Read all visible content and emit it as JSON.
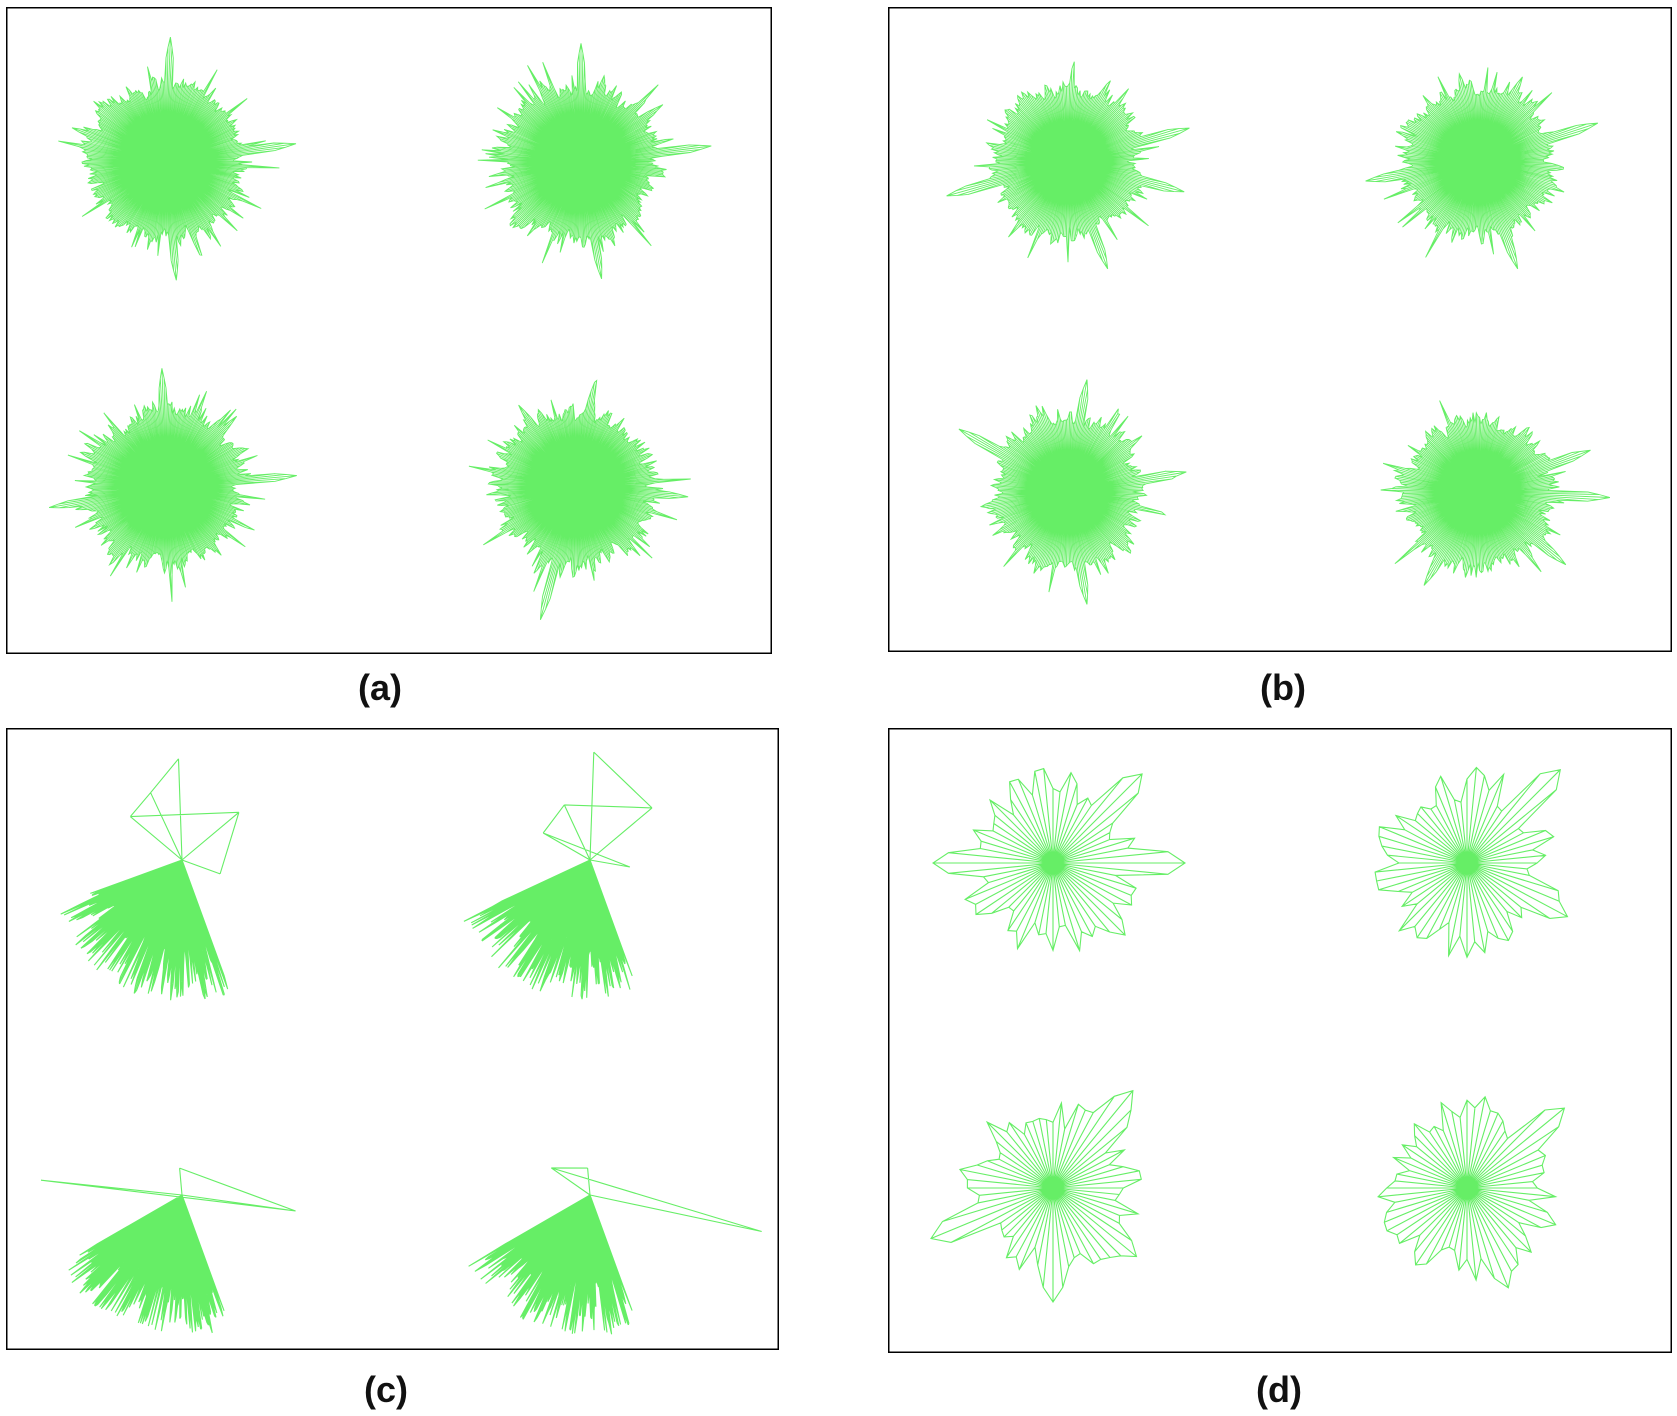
{
  "figure": {
    "line_color": "#66ee66",
    "frame_color": "#000000",
    "panels": [
      {
        "id": "a",
        "caption": "(a)",
        "glyphs": [
          {
            "spokes": 360,
            "style": "dense",
            "seed": 11,
            "spikes": [
              {
                "angle": 88,
                "len": 1.0
              },
              {
                "angle": 8,
                "len": 1.05
              },
              {
                "angle": 275,
                "len": 0.95
              },
              {
                "angle": 160,
                "len": 0.8
              }
            ]
          },
          {
            "spokes": 360,
            "style": "dense",
            "seed": 23,
            "spikes": [
              {
                "angle": 90,
                "len": 0.95
              },
              {
                "angle": 7,
                "len": 1.05
              },
              {
                "angle": 280,
                "len": 0.95
              },
              {
                "angle": 35,
                "len": 0.8
              }
            ]
          },
          {
            "spokes": 360,
            "style": "dense",
            "seed": 37,
            "spikes": [
              {
                "angle": 92,
                "len": 0.95
              },
              {
                "angle": 5,
                "len": 1.05
              },
              {
                "angle": 190,
                "len": 0.95
              },
              {
                "angle": 45,
                "len": 0.8
              }
            ]
          },
          {
            "spokes": 360,
            "style": "dense",
            "seed": 41,
            "spikes": [
              {
                "angle": 255,
                "len": 1.1
              },
              {
                "angle": 355,
                "len": 0.9
              },
              {
                "angle": 80,
                "len": 0.85
              },
              {
                "angle": 125,
                "len": 0.8
              }
            ]
          }
        ]
      },
      {
        "id": "b",
        "caption": "(b)",
        "glyphs": [
          {
            "spokes": 300,
            "style": "dense",
            "seed": 53,
            "spikes": [
              {
                "angle": 15,
                "len": 1.05
              },
              {
                "angle": 195,
                "len": 1.05
              },
              {
                "angle": 345,
                "len": 1.0
              },
              {
                "angle": 290,
                "len": 0.95
              }
            ]
          },
          {
            "spokes": 300,
            "style": "dense",
            "seed": 61,
            "spikes": [
              {
                "angle": 18,
                "len": 1.05
              },
              {
                "angle": 190,
                "len": 0.95
              },
              {
                "angle": 290,
                "len": 0.95
              },
              {
                "angle": 62,
                "len": 0.8
              }
            ]
          },
          {
            "spokes": 300,
            "style": "dense",
            "seed": 71,
            "spikes": [
              {
                "angle": 150,
                "len": 1.05
              },
              {
                "angle": 80,
                "len": 0.95
              },
              {
                "angle": 280,
                "len": 0.95
              },
              {
                "angle": 10,
                "len": 1.0
              }
            ]
          },
          {
            "spokes": 300,
            "style": "dense",
            "seed": 83,
            "spikes": [
              {
                "angle": 358,
                "len": 1.1
              },
              {
                "angle": 20,
                "len": 1.0
              },
              {
                "angle": 320,
                "len": 0.95
              },
              {
                "angle": 240,
                "len": 0.9
              }
            ]
          }
        ]
      },
      {
        "id": "c",
        "caption": "(c)",
        "glyphs": [
          {
            "spokes": 180,
            "style": "fan",
            "seed": 97,
            "fan": [
              200,
              290
            ],
            "extras": [
              {
                "angle": 92,
                "len": 0.75
              },
              {
                "angle": 115,
                "len": 0.55
              },
              {
                "angle": 140,
                "len": 0.5
              },
              {
                "angle": 40,
                "len": 0.55
              },
              {
                "angle": 340,
                "len": 0.3
              }
            ]
          },
          {
            "spokes": 180,
            "style": "fan",
            "seed": 101,
            "fan": [
              205,
              290
            ],
            "extras": [
              {
                "angle": 88,
                "len": 0.8
              },
              {
                "angle": 40,
                "len": 0.6
              },
              {
                "angle": 115,
                "len": 0.45
              },
              {
                "angle": 150,
                "len": 0.4
              },
              {
                "angle": 350,
                "len": 0.3
              }
            ]
          },
          {
            "spokes": 180,
            "style": "fan",
            "seed": 103,
            "fan": [
              210,
              290
            ],
            "extras": [
              {
                "angle": 174,
                "len": 1.05
              },
              {
                "angle": 352,
                "len": 0.85
              },
              {
                "angle": 95,
                "len": 0.2
              }
            ]
          },
          {
            "spokes": 180,
            "style": "fan",
            "seed": 107,
            "fan": [
              210,
              290
            ],
            "extras": [
              {
                "angle": 348,
                "len": 1.3
              },
              {
                "angle": 145,
                "len": 0.35
              },
              {
                "angle": 95,
                "len": 0.2
              }
            ]
          }
        ]
      },
      {
        "id": "d",
        "caption": "(d)",
        "glyphs": [
          {
            "spokes": 64,
            "style": "sparse",
            "seed": 109,
            "spikes": [
              {
                "angle": 45,
                "len": 1.05
              },
              {
                "angle": 0,
                "len": 1.1
              },
              {
                "angle": 180,
                "len": 1.0
              },
              {
                "angle": 315,
                "len": 0.85
              }
            ]
          },
          {
            "spokes": 64,
            "style": "sparse",
            "seed": 113,
            "spikes": [
              {
                "angle": 45,
                "len": 1.1
              },
              {
                "angle": 330,
                "len": 0.95
              },
              {
                "angle": 85,
                "len": 0.8
              },
              {
                "angle": 270,
                "len": 0.7
              }
            ]
          },
          {
            "spokes": 64,
            "style": "sparse",
            "seed": 127,
            "spikes": [
              {
                "angle": 50,
                "len": 1.05
              },
              {
                "angle": 200,
                "len": 1.1
              },
              {
                "angle": 320,
                "len": 0.9
              },
              {
                "angle": 270,
                "len": 0.95
              }
            ]
          },
          {
            "spokes": 64,
            "style": "sparse",
            "seed": 131,
            "spikes": [
              {
                "angle": 42,
                "len": 1.05
              },
              {
                "angle": 340,
                "len": 0.8
              },
              {
                "angle": 290,
                "len": 0.9
              },
              {
                "angle": 195,
                "len": 0.7
              }
            ]
          }
        ]
      }
    ]
  }
}
